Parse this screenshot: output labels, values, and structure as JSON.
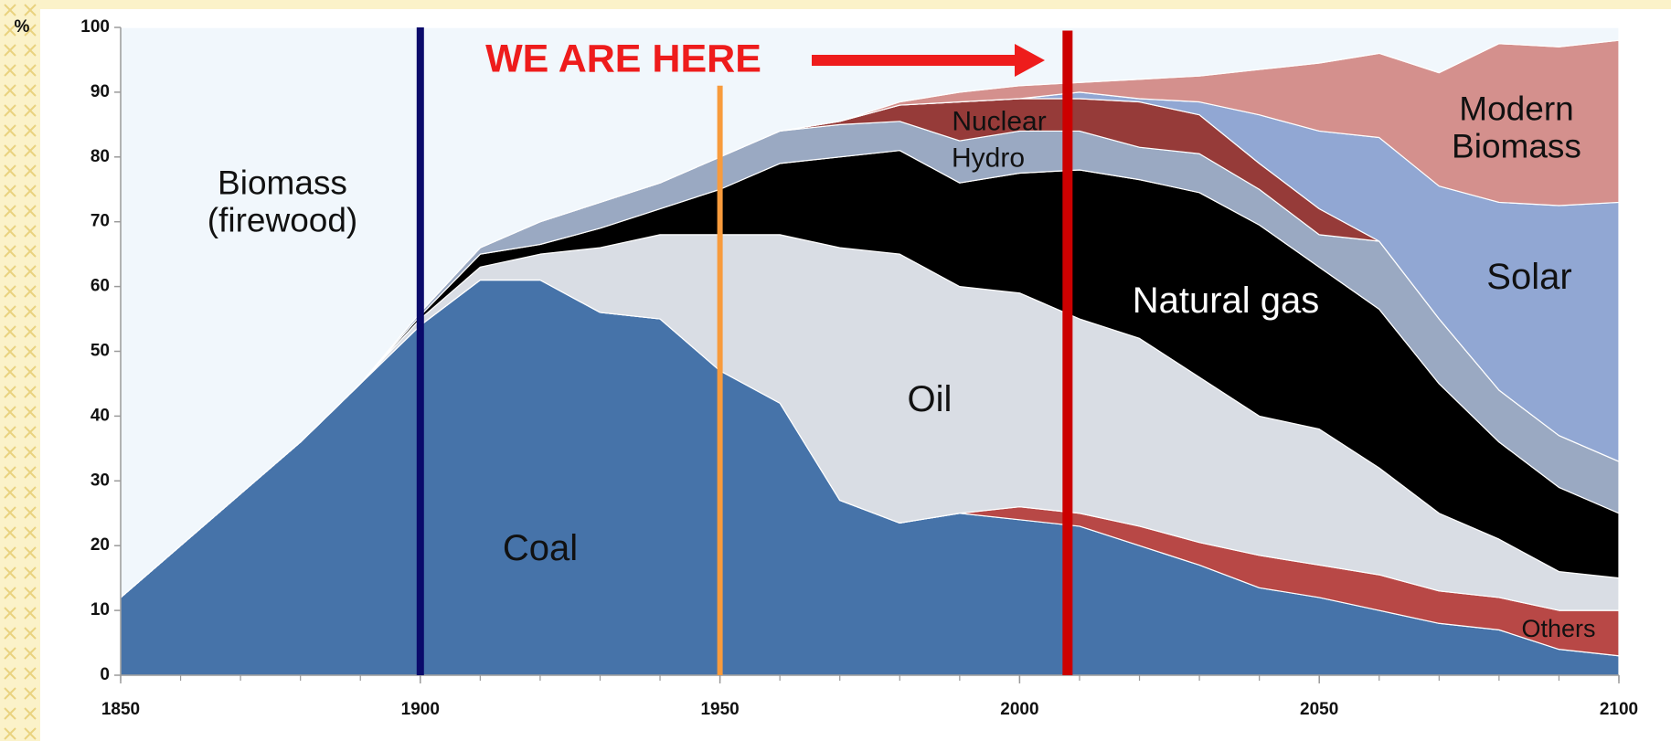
{
  "chart_data": {
    "type": "stacked_area",
    "y_label": "%",
    "annotation": "WE ARE HERE",
    "x": [
      1850,
      1860,
      1870,
      1880,
      1890,
      1900,
      1910,
      1920,
      1930,
      1940,
      1950,
      1960,
      1970,
      1980,
      1990,
      2000,
      2010,
      2020,
      2030,
      2040,
      2050,
      2060,
      2070,
      2080,
      2090,
      2100
    ],
    "series": [
      {
        "name": "Coal",
        "color": "#4673a9",
        "values": [
          12,
          20,
          28,
          36,
          45,
          54,
          61,
          61,
          56,
          55,
          47,
          42,
          27,
          23.5,
          25,
          24,
          23,
          20,
          17,
          13.5,
          12,
          10,
          8,
          7,
          4,
          3
        ]
      },
      {
        "name": "Others",
        "color": "#b84846",
        "values": [
          0,
          0,
          0,
          0,
          0,
          0,
          0,
          0,
          0,
          0,
          0,
          0,
          0,
          0,
          0,
          2,
          2,
          3,
          3.5,
          5,
          5,
          5.5,
          5,
          5,
          6,
          7
        ]
      },
      {
        "name": "Oil",
        "color": "#d9dde4",
        "values": [
          0,
          0,
          0,
          0,
          0,
          1,
          2,
          4,
          10,
          13,
          21,
          26,
          39,
          41.5,
          35,
          33,
          30,
          29,
          25.5,
          21.5,
          21,
          16.5,
          12,
          9,
          6,
          5
        ]
      },
      {
        "name": "Natural gas",
        "color": "#000000",
        "values": [
          0,
          0,
          0,
          0,
          0,
          0.5,
          2,
          1.5,
          3,
          4,
          7,
          11,
          14,
          16,
          16,
          18.5,
          23,
          24.5,
          28.5,
          29.5,
          25,
          24.5,
          20,
          15,
          13,
          10
        ]
      },
      {
        "name": "Hydro",
        "color": "#9aa9c2",
        "values": [
          0,
          0,
          0,
          0,
          0,
          0.5,
          1,
          3.5,
          4,
          4,
          5,
          5,
          5,
          4.5,
          6.5,
          6.5,
          6,
          5,
          6,
          5.5,
          5,
          10.5,
          10,
          8,
          8,
          8
        ]
      },
      {
        "name": "Nuclear",
        "color": "#963b39",
        "values": [
          0,
          0,
          0,
          0,
          0,
          0,
          0,
          0,
          0,
          0,
          0,
          0,
          0.5,
          2.5,
          6,
          5,
          5,
          7,
          6,
          4,
          4,
          0,
          0,
          0,
          0,
          0
        ]
      },
      {
        "name": "Solar",
        "color": "#91a7d3",
        "values": [
          0,
          0,
          0,
          0,
          0,
          0,
          0,
          0,
          0,
          0,
          0,
          0,
          0,
          0,
          0,
          0,
          1,
          0.5,
          2,
          7.5,
          12,
          16,
          20.5,
          29,
          35.5,
          40
        ]
      },
      {
        "name": "Modern Biomass",
        "color": "#d4908d",
        "values": [
          0,
          0,
          0,
          0,
          0,
          0,
          0,
          0,
          0,
          0,
          0,
          0,
          0,
          0.5,
          1.5,
          2,
          1.5,
          3,
          4,
          7,
          10.5,
          13,
          17.5,
          24.5,
          24.5,
          25
        ]
      },
      {
        "name": "Biomass (firewood)",
        "color": "#f1f7fc",
        "values": [
          88,
          80,
          72,
          64,
          55,
          44,
          34,
          30,
          27,
          24,
          20,
          16,
          14.5,
          11.5,
          10,
          9,
          8.5,
          8,
          7.5,
          6.5,
          5.5,
          4,
          7,
          2.5,
          3,
          2
        ]
      }
    ],
    "markers": [
      {
        "x": 1900,
        "y_top": 100,
        "color": "#0b0b6b"
      },
      {
        "x": 1950,
        "y_top": 91,
        "color": "#f89b3c"
      },
      {
        "x": 2008,
        "y_top": 99.5,
        "color": "#cc0000"
      }
    ],
    "xlim": [
      1850,
      2100
    ],
    "xticks": [
      1850,
      1900,
      1950,
      2000,
      2050,
      2100
    ],
    "ylim": [
      0,
      100
    ],
    "yticks": [
      0,
      10,
      20,
      30,
      40,
      50,
      60,
      70,
      80,
      90,
      100
    ]
  }
}
